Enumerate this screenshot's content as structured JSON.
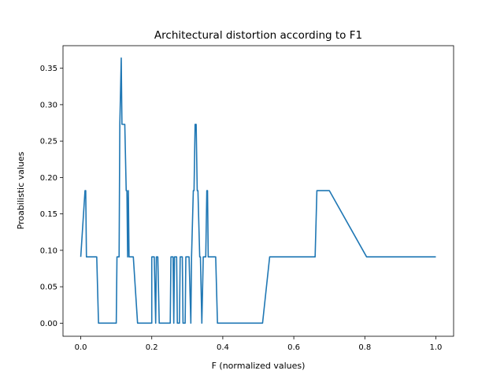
{
  "chart_data": {
    "type": "line",
    "title": "Architectural distortion according to F1",
    "xlabel": "F (normalized values)",
    "ylabel": "Proabilistic values",
    "xlim": [
      -0.05,
      1.05
    ],
    "ylim": [
      -0.018,
      0.381
    ],
    "xticks": [
      0.0,
      0.2,
      0.4,
      0.6,
      0.8,
      1.0
    ],
    "xtick_labels": [
      "0.0",
      "0.2",
      "0.4",
      "0.6",
      "0.8",
      "1.0"
    ],
    "yticks": [
      0.0,
      0.05,
      0.1,
      0.15,
      0.2,
      0.25,
      0.3,
      0.35
    ],
    "ytick_labels": [
      "0.00",
      "0.05",
      "0.10",
      "0.15",
      "0.20",
      "0.25",
      "0.30",
      "0.35"
    ],
    "grid": false,
    "color": "#1f77b4",
    "series": [
      {
        "x": [
          0.0,
          0.012,
          0.013,
          0.014,
          0.016,
          0.045,
          0.05,
          0.1,
          0.102,
          0.108,
          0.11,
          0.114,
          0.116,
          0.12,
          0.124,
          0.128,
          0.13,
          0.132,
          0.134,
          0.136,
          0.138,
          0.142,
          0.148,
          0.16,
          0.2,
          0.2,
          0.207,
          0.211,
          0.213,
          0.217,
          0.221,
          0.222,
          0.226,
          0.252,
          0.254,
          0.26,
          0.262,
          0.264,
          0.27,
          0.272,
          0.278,
          0.28,
          0.286,
          0.288,
          0.294,
          0.296,
          0.305,
          0.31,
          0.312,
          0.317,
          0.319,
          0.322,
          0.323,
          0.325,
          0.328,
          0.33,
          0.335,
          0.337,
          0.341,
          0.345,
          0.348,
          0.352,
          0.355,
          0.357,
          0.359,
          0.362,
          0.366,
          0.38,
          0.385,
          0.512,
          0.532,
          0.66,
          0.665,
          0.7,
          0.805,
          1.0
        ],
        "y": [
          0.091,
          0.182,
          0.182,
          0.182,
          0.091,
          0.091,
          0.0,
          0.0,
          0.091,
          0.091,
          0.273,
          0.364,
          0.273,
          0.273,
          0.273,
          0.182,
          0.182,
          0.091,
          0.182,
          0.091,
          0.091,
          0.091,
          0.091,
          0.0,
          0.0,
          0.091,
          0.091,
          0.0,
          0.091,
          0.091,
          0.0,
          0.0,
          0.0,
          0.0,
          0.091,
          0.091,
          0.0,
          0.091,
          0.091,
          0.0,
          0.0,
          0.091,
          0.091,
          0.0,
          0.0,
          0.091,
          0.091,
          0.0,
          0.091,
          0.182,
          0.182,
          0.273,
          0.273,
          0.273,
          0.182,
          0.182,
          0.091,
          0.091,
          0.0,
          0.091,
          0.091,
          0.091,
          0.182,
          0.182,
          0.091,
          0.091,
          0.091,
          0.091,
          0.0,
          0.0,
          0.091,
          0.091,
          0.182,
          0.182,
          0.091,
          0.091
        ]
      }
    ]
  }
}
